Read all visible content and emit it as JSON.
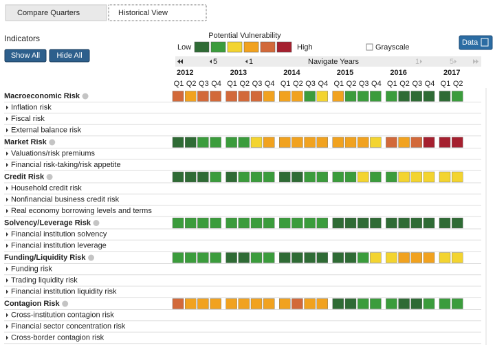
{
  "tabs": [
    "Compare Quarters",
    "Historical View"
  ],
  "indicators_label": "Indicators",
  "buttons": [
    "Show All",
    "Hide All"
  ],
  "legend": {
    "title": "Potential Vulnerability",
    "low": "Low",
    "high": "High",
    "levels": [
      1,
      2,
      3,
      4,
      5,
      6
    ],
    "colors": [
      "#2f6b35",
      "#3b9c3c",
      "#f3d430",
      "#f1a21f",
      "#d2693a",
      "#a5202f"
    ]
  },
  "grayscale": "Grayscale",
  "data_button": "Data",
  "nav": {
    "back5": "5",
    "back1": "1",
    "title": "Navigate Years",
    "fwd1": "1",
    "fwd5": "5"
  },
  "years": [
    {
      "year": "2012",
      "quarters": [
        "Q1",
        "Q2",
        "Q3",
        "Q4"
      ]
    },
    {
      "year": "2013",
      "quarters": [
        "Q1",
        "Q2",
        "Q3",
        "Q4"
      ]
    },
    {
      "year": "2014",
      "quarters": [
        "Q1",
        "Q2",
        "Q3",
        "Q4"
      ]
    },
    {
      "year": "2015",
      "quarters": [
        "Q1",
        "Q2",
        "Q3",
        "Q4"
      ]
    },
    {
      "year": "2016",
      "quarters": [
        "Q1",
        "Q2",
        "Q3",
        "Q4"
      ]
    },
    {
      "year": "2017",
      "quarters": [
        "Q1",
        "Q2"
      ]
    }
  ],
  "groups": [
    {
      "name": "Macroeconomic Risk",
      "levels": [
        5,
        4,
        5,
        5,
        5,
        5,
        5,
        4,
        4,
        4,
        2,
        3,
        4,
        2,
        2,
        2,
        2,
        1,
        1,
        1,
        1,
        2
      ],
      "subs": [
        "Inflation risk",
        "Fiscal risk",
        "External balance risk"
      ]
    },
    {
      "name": "Market Risk",
      "levels": [
        1,
        1,
        2,
        2,
        2,
        2,
        3,
        4,
        4,
        4,
        4,
        4,
        4,
        4,
        4,
        3,
        5,
        4,
        5,
        6,
        6,
        6
      ],
      "subs": [
        "Valuations/risk premiums",
        "Financial risk-taking/risk appetite"
      ]
    },
    {
      "name": "Credit Risk",
      "levels": [
        1,
        1,
        1,
        2,
        1,
        2,
        2,
        2,
        1,
        1,
        2,
        2,
        2,
        2,
        3,
        2,
        2,
        3,
        3,
        3,
        3,
        3
      ],
      "subs": [
        "Household credit risk",
        "Nonfinancial business credit risk",
        "Real economy borrowing levels and terms"
      ]
    },
    {
      "name": "Solvency/Leverage Risk",
      "levels": [
        2,
        2,
        2,
        2,
        2,
        2,
        2,
        2,
        2,
        2,
        2,
        2,
        1,
        1,
        1,
        1,
        1,
        1,
        1,
        1,
        1,
        1
      ],
      "subs": [
        "Financial institution solvency",
        "Financial institution leverage"
      ]
    },
    {
      "name": "Funding/Liquidity Risk",
      "levels": [
        2,
        2,
        2,
        2,
        1,
        1,
        2,
        2,
        1,
        1,
        1,
        1,
        1,
        1,
        2,
        3,
        3,
        4,
        4,
        4,
        3,
        3
      ],
      "subs": [
        "Funding risk",
        "Trading liquidity risk",
        "Financial institution liquidity risk"
      ]
    },
    {
      "name": "Contagion Risk",
      "levels": [
        5,
        4,
        4,
        4,
        4,
        4,
        4,
        4,
        4,
        5,
        4,
        4,
        1,
        1,
        2,
        2,
        2,
        1,
        1,
        2,
        2,
        2
      ],
      "subs": [
        "Cross-institution contagion risk",
        "Financial sector concentration risk",
        "Cross-border contagion risk"
      ]
    }
  ]
}
